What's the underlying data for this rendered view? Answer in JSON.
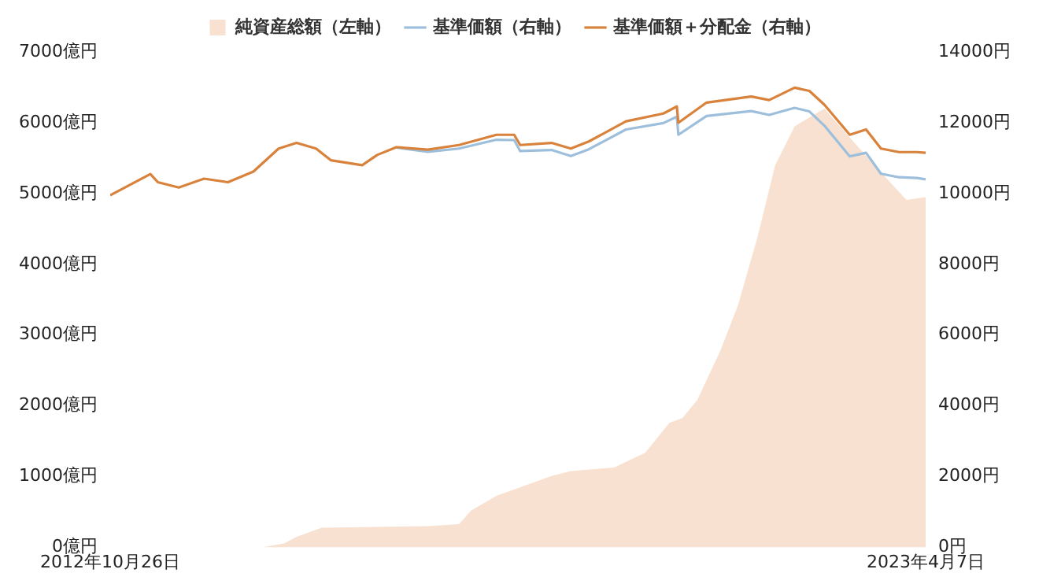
{
  "chart_data": {
    "type": "line",
    "legend": "top",
    "grid": false,
    "marker": "none",
    "xlim": [
      "2012-10-26",
      "2023-04-07"
    ],
    "xticks": [
      {
        "value": "2012-10-26",
        "label": "2012年10月26日"
      },
      {
        "value": "2023-04-07",
        "label": "2023年4月7日"
      }
    ],
    "ylim": [
      0,
      7000
    ],
    "yticks": [
      {
        "value": 0,
        "label": "0億円"
      },
      {
        "value": 1000,
        "label": "1000億円"
      },
      {
        "value": 2000,
        "label": "2000億円"
      },
      {
        "value": 3000,
        "label": "3000億円"
      },
      {
        "value": 4000,
        "label": "4000億円"
      },
      {
        "value": 5000,
        "label": "5000億円"
      },
      {
        "value": 6000,
        "label": "6000億円"
      },
      {
        "value": 7000,
        "label": "7000億円"
      }
    ],
    "y2lim": [
      0,
      14000
    ],
    "y2ticks": [
      {
        "value": 0,
        "label": "0円"
      },
      {
        "value": 2000,
        "label": "2000円"
      },
      {
        "value": 4000,
        "label": "4000円"
      },
      {
        "value": 6000,
        "label": "6000円"
      },
      {
        "value": 8000,
        "label": "8000円"
      },
      {
        "value": 10000,
        "label": "10000円"
      },
      {
        "value": 12000,
        "label": "12000円"
      },
      {
        "value": 14000,
        "label": "14000円"
      }
    ],
    "series": [
      {
        "name": "純資産総額（左軸）",
        "type": "area",
        "color": "#f8e1d0",
        "x": [
          "2012-10-26",
          "2014-10-07",
          "2015-01-20",
          "2015-03-17",
          "2015-07-13",
          "2016-11-20",
          "2017-04-15",
          "2017-06-10",
          "2017-10-07",
          "2018-06-22",
          "2018-09-20",
          "2019-04-11",
          "2019-09-04",
          "2019-12-25",
          "2020-02-25",
          "2020-05-05",
          "2020-08-18",
          "2020-11-10",
          "2021-02-08",
          "2021-05-03",
          "2021-08-02",
          "2021-11-21",
          "2021-12-19",
          "2022-04-17",
          "2022-09-10",
          "2023-01-07",
          "2023-04-07"
        ],
        "values": [
          0,
          0,
          60,
          150,
          280,
          300,
          330,
          520,
          730,
          1010,
          1080,
          1130,
          1340,
          1760,
          1830,
          2090,
          2770,
          3420,
          4370,
          5400,
          5950,
          6150,
          6200,
          5790,
          5300,
          4910,
          4950
        ]
      },
      {
        "name": "基準価額（右軸）",
        "axis": "y2",
        "color": "#9dbfdc",
        "x": [
          "2016-06-26",
          "2016-11-20",
          "2017-04-15",
          "2017-10-07",
          "2017-12-29",
          "2018-01-26",
          "2018-06-22",
          "2018-09-20",
          "2018-12-13",
          "2019-06-05",
          "2019-11-27",
          "2020-01-29",
          "2020-02-05",
          "2020-06-16",
          "2021-01-11",
          "2021-04-05",
          "2021-08-02",
          "2021-10-10",
          "2021-12-19",
          "2022-04-17",
          "2022-07-02",
          "2022-09-10",
          "2022-12-03",
          "2023-02-25",
          "2023-04-07"
        ],
        "values": [
          11300,
          11180,
          11270,
          11520,
          11510,
          11200,
          11230,
          11060,
          11250,
          11810,
          11990,
          12170,
          11660,
          12190,
          12330,
          12220,
          12420,
          12320,
          11920,
          11050,
          11150,
          10560,
          10460,
          10440,
          10400
        ]
      },
      {
        "name": "基準価額＋分配金（右軸）",
        "axis": "y2",
        "color": "#d9823b",
        "x": [
          "2012-10-26",
          "2013-05-02",
          "2013-06-06",
          "2013-09-12",
          "2014-01-08",
          "2014-04-30",
          "2014-08-27",
          "2014-12-23",
          "2015-03-17",
          "2015-06-16",
          "2015-08-24",
          "2016-01-18",
          "2016-03-28",
          "2016-06-26",
          "2016-11-20",
          "2017-04-15",
          "2017-10-07",
          "2017-12-29",
          "2018-01-26",
          "2018-06-22",
          "2018-09-20",
          "2018-12-13",
          "2019-06-05",
          "2019-11-27",
          "2020-01-29",
          "2020-02-05",
          "2020-06-16",
          "2021-01-11",
          "2021-04-05",
          "2021-08-02",
          "2021-10-10",
          "2021-12-19",
          "2022-04-17",
          "2022-07-02",
          "2022-09-10",
          "2022-12-03",
          "2023-02-25",
          "2023-04-07"
        ],
        "values": [
          9950,
          10550,
          10320,
          10170,
          10420,
          10320,
          10620,
          11270,
          11430,
          11270,
          10940,
          10800,
          11090,
          11310,
          11240,
          11370,
          11660,
          11660,
          11370,
          11430,
          11270,
          11470,
          12040,
          12260,
          12460,
          12000,
          12570,
          12740,
          12640,
          12990,
          12900,
          12510,
          11660,
          11810,
          11270,
          11170,
          11170,
          11150
        ]
      }
    ]
  }
}
